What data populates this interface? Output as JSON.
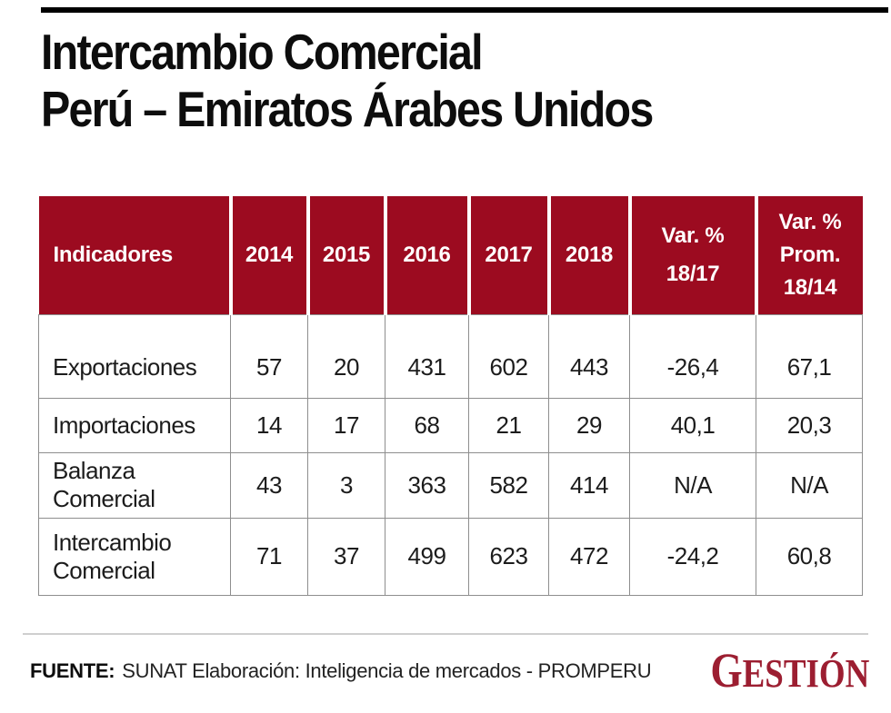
{
  "page": {
    "title_line1": "Intercambio Comercial",
    "title_line2": "Perú – Emiratos Árabes Unidos"
  },
  "colors": {
    "header_bg": "#9C0B20",
    "brand_red": "#9C1E31",
    "grid": "#8E8E8E"
  },
  "table": {
    "headers": [
      [
        "Indicadores"
      ],
      [
        "2014"
      ],
      [
        "2015"
      ],
      [
        "2016"
      ],
      [
        "2017"
      ],
      [
        "2018"
      ],
      [
        "Var. %",
        "18/17"
      ],
      [
        "Var. %",
        "Prom.",
        "18/14"
      ]
    ],
    "rows": [
      {
        "label": "Exportaciones",
        "values": [
          "57",
          "20",
          "431",
          "602",
          "443",
          "-26,4",
          "67,1"
        ]
      },
      {
        "label": "Importaciones",
        "values": [
          "14",
          "17",
          "68",
          "21",
          "29",
          "40,1",
          "20,3"
        ]
      },
      {
        "label": "Balanza Comercial",
        "values": [
          "43",
          "3",
          "363",
          "582",
          "414",
          "N/A",
          "N/A"
        ]
      },
      {
        "label": "Intercambio Comercial",
        "values": [
          "71",
          "37",
          "499",
          "623",
          "472",
          "-24,2",
          "60,8"
        ]
      }
    ]
  },
  "footer": {
    "source_label": "FUENTE:",
    "source_text": "SUNAT Elaboración: Inteligencia de mercados - PROMPERU",
    "brand_initial": "G",
    "brand_rest": "ESTIÓN"
  },
  "chart_data": {
    "type": "table",
    "title": "Intercambio Comercial Perú – Emiratos Árabes Unidos",
    "columns": [
      "Indicadores",
      "2014",
      "2015",
      "2016",
      "2017",
      "2018",
      "Var. % 18/17",
      "Var. % Prom. 18/14"
    ],
    "rows": [
      [
        "Exportaciones",
        57,
        20,
        431,
        602,
        443,
        -26.4,
        67.1
      ],
      [
        "Importaciones",
        14,
        17,
        68,
        21,
        29,
        40.1,
        20.3
      ],
      [
        "Balanza Comercial",
        43,
        3,
        363,
        582,
        414,
        "N/A",
        "N/A"
      ],
      [
        "Intercambio Comercial",
        71,
        37,
        499,
        623,
        472,
        -24.2,
        60.8
      ]
    ],
    "source": "FUENTE: SUNAT Elaboración: Inteligencia de mercados - PROMPERU"
  }
}
